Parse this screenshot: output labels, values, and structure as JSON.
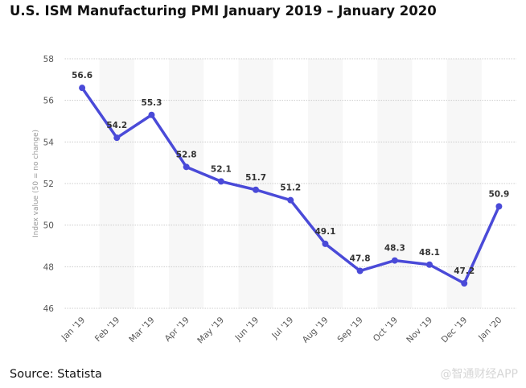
{
  "title": "U.S. ISM Manufacturing PMI January 2019 – January 2020",
  "source": "Source: Statista",
  "watermark": "@智通财经APP",
  "colors": {
    "line": "#4a4ad8",
    "band": "#f7f7f7",
    "grid": "#cccccc"
  },
  "chart_data": {
    "type": "line",
    "title": "U.S. ISM Manufacturing PMI January 2019 – January 2020",
    "xlabel": "",
    "ylabel": "Index value (50 = no change)",
    "categories": [
      "Jan '19",
      "Feb '19",
      "Mar '19",
      "Apr '19",
      "May '19",
      "Jun '19",
      "Jul '19",
      "Aug '19",
      "Sep '19",
      "Oct '19",
      "Nov '19",
      "Dec '19",
      "Jan '20"
    ],
    "series": [
      {
        "name": "ISM Manufacturing PMI",
        "values": [
          56.6,
          54.2,
          55.3,
          52.8,
          52.1,
          51.7,
          51.2,
          49.1,
          47.8,
          48.3,
          48.1,
          47.2,
          50.9
        ]
      }
    ],
    "data_labels": [
      "56.6",
      "54.2",
      "55.3",
      "52.8",
      "52.1",
      "51.7",
      "51.2",
      "49.1",
      "47.8",
      "48.3",
      "48.1",
      "47.2",
      "50.9"
    ],
    "yticks": [
      46,
      48,
      50,
      52,
      54,
      56,
      58
    ],
    "ylim": [
      46,
      58
    ],
    "grid": true,
    "legend": "none"
  }
}
